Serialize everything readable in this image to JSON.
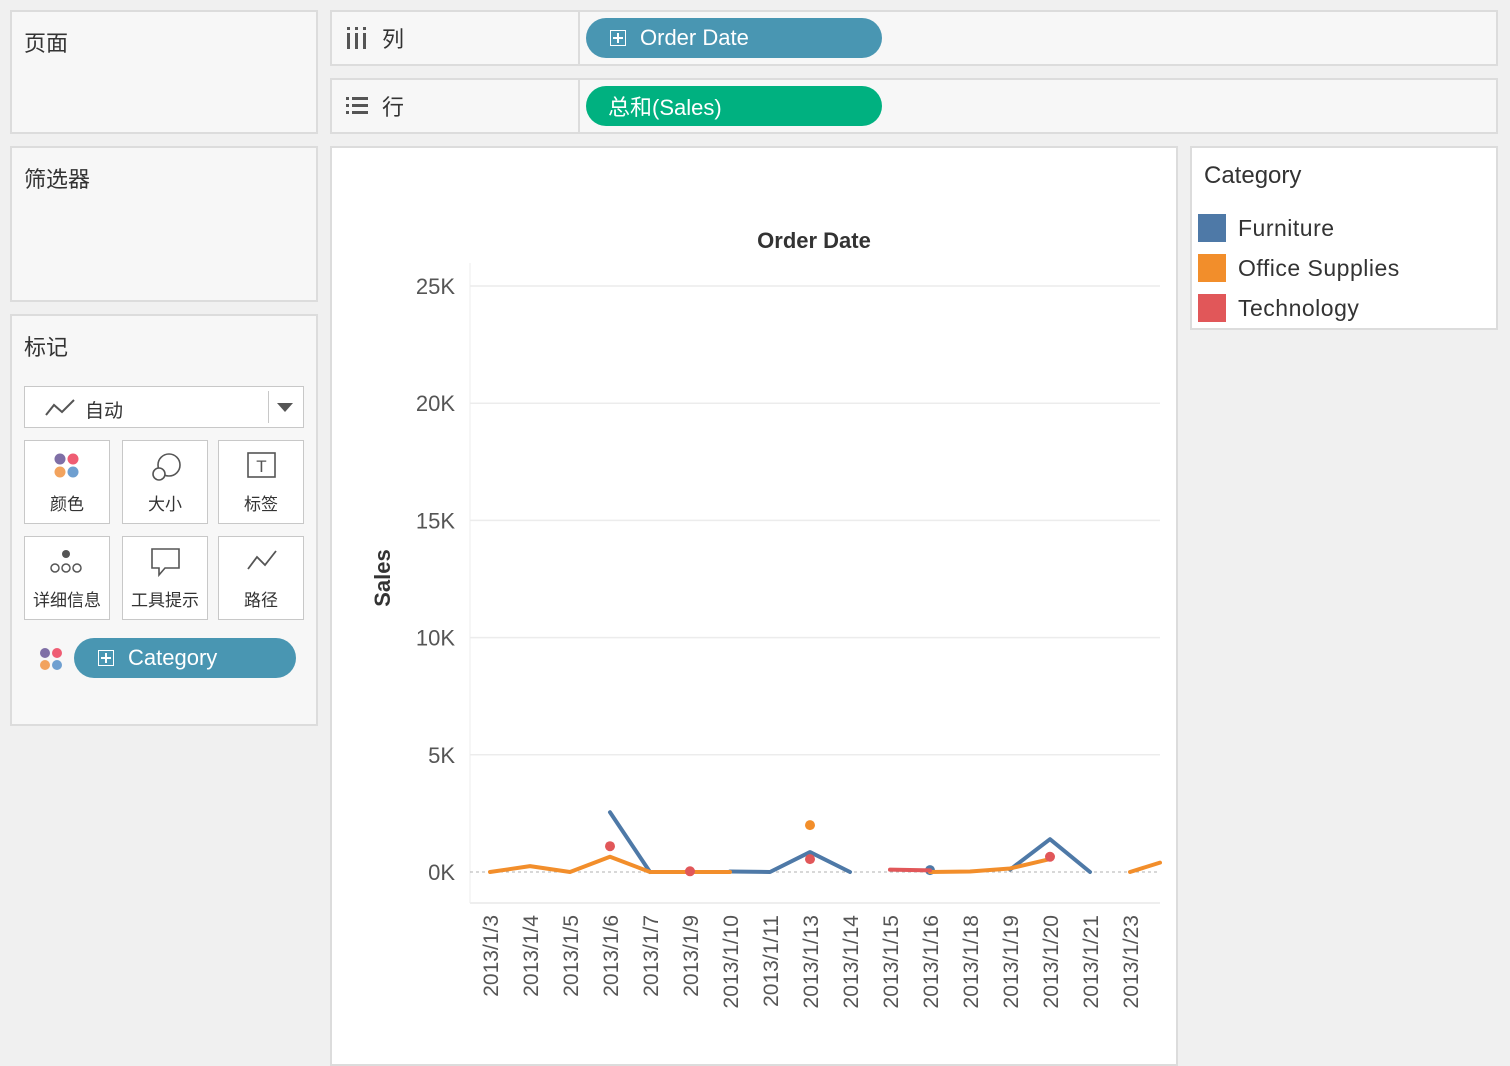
{
  "panels": {
    "pages_title": "页面",
    "filters_title": "筛选器",
    "marks_title": "标记"
  },
  "shelves": {
    "columns": {
      "label": "列",
      "pill": "Order Date",
      "pill_color": "#4996b2"
    },
    "rows": {
      "label": "行",
      "pill": "总和(Sales)",
      "pill_color": "#00b180"
    }
  },
  "marks": {
    "type_label": "自动",
    "buttons": {
      "color": "颜色",
      "size": "大小",
      "label": "标签",
      "detail": "详细信息",
      "tooltip": "工具提示",
      "path": "路径"
    },
    "color_pill": "Category",
    "color_pill_color": "#4996b2"
  },
  "legend": {
    "title": "Category",
    "items": [
      {
        "name": "Furniture",
        "color": "#4e79a7"
      },
      {
        "name": "Office Supplies",
        "color": "#f28e2b"
      },
      {
        "name": "Technology",
        "color": "#e15759"
      }
    ]
  },
  "chart_data": {
    "type": "line",
    "title": "Order Date",
    "xlabel": "",
    "ylabel": "Sales",
    "ylim": [
      0,
      25000
    ],
    "yticks": [
      0,
      5000,
      10000,
      15000,
      20000,
      25000
    ],
    "ytick_labels": [
      "0K",
      "5K",
      "10K",
      "15K",
      "20K",
      "25K"
    ],
    "grid": true,
    "categories": [
      "2013/1/3",
      "2013/1/4",
      "2013/1/5",
      "2013/1/6",
      "2013/1/7",
      "2013/1/9",
      "2013/1/10",
      "2013/1/11",
      "2013/1/13",
      "2013/1/14",
      "2013/1/15",
      "2013/1/16",
      "2013/1/18",
      "2013/1/19",
      "2013/1/20",
      "2013/1/21",
      "2013/1/23"
    ],
    "series": [
      {
        "name": "Furniture",
        "color": "#4e79a7",
        "values": [
          null,
          null,
          null,
          2550,
          0,
          null,
          20,
          0,
          850,
          0,
          null,
          80,
          null,
          100,
          1400,
          0,
          null
        ]
      },
      {
        "name": "Office Supplies",
        "color": "#f28e2b",
        "values": [
          0,
          250,
          0,
          650,
          0,
          0,
          0,
          null,
          2000,
          null,
          null,
          0,
          20,
          150,
          550,
          null,
          0
        ]
      },
      {
        "name": "Technology",
        "color": "#e15759",
        "values": [
          null,
          null,
          null,
          1100,
          null,
          30,
          null,
          null,
          550,
          null,
          100,
          70,
          null,
          null,
          650,
          null,
          null
        ]
      }
    ],
    "trailing_segment": {
      "series": "Office Supplies",
      "to_value": 400
    }
  }
}
